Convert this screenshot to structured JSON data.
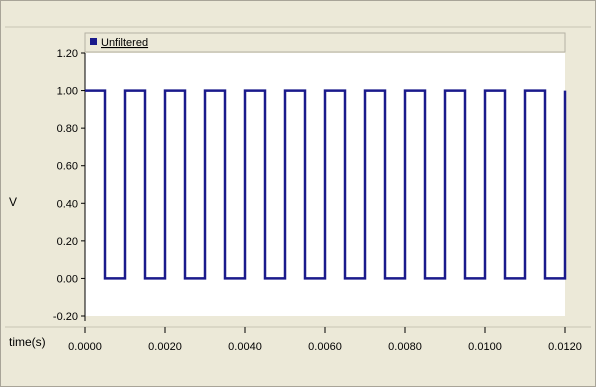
{
  "colors": {
    "panel": "#ece9d8",
    "plot_bg": "#ffffff",
    "series": "#1a1a8c",
    "axis": "#000000",
    "separator": "#c9c5b5"
  },
  "chart_data": {
    "type": "line",
    "title": "",
    "xlabel": "time(s)",
    "ylabel": "V",
    "xlim": [
      0,
      0.012
    ],
    "ylim": [
      -0.2,
      1.2
    ],
    "grid": false,
    "legend_position": "top-left",
    "x_ticks": [
      "0.0000",
      "0.0020",
      "0.0040",
      "0.0060",
      "0.0080",
      "0.0100",
      "0.0120"
    ],
    "y_ticks": [
      "1.20",
      "1.00",
      "0.80",
      "0.60",
      "0.40",
      "0.20",
      "0.00",
      "-0.20"
    ],
    "series": [
      {
        "name": "Unfiltered",
        "color": "#1a1a8c",
        "waveform": "square",
        "period": 0.001,
        "duty_cycle": 0.5,
        "high": 1.0,
        "low": 0.0,
        "x_start": 0,
        "x_end": 0.012
      }
    ]
  }
}
